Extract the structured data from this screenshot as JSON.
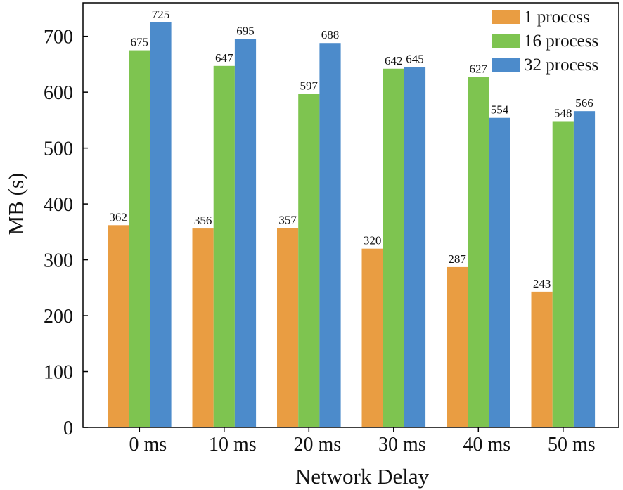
{
  "chart_data": {
    "type": "bar",
    "title": "",
    "xlabel": "Network Delay",
    "ylabel": "MB (s)",
    "categories": [
      "0 ms",
      "10 ms",
      "20 ms",
      "30 ms",
      "40 ms",
      "50 ms"
    ],
    "ylim": [
      0,
      760
    ],
    "yticks": [
      0,
      100,
      200,
      300,
      400,
      500,
      600,
      700
    ],
    "grid": false,
    "legend_position": "top-right",
    "series": [
      {
        "name": "1 process",
        "color": "#E99D42",
        "values": [
          362,
          356,
          357,
          320,
          287,
          243
        ]
      },
      {
        "name": "16 process",
        "color": "#7EC450",
        "values": [
          675,
          647,
          597,
          642,
          627,
          548
        ]
      },
      {
        "name": "32 process",
        "color": "#4C8BCB",
        "values": [
          725,
          695,
          688,
          645,
          554,
          566
        ]
      }
    ]
  }
}
